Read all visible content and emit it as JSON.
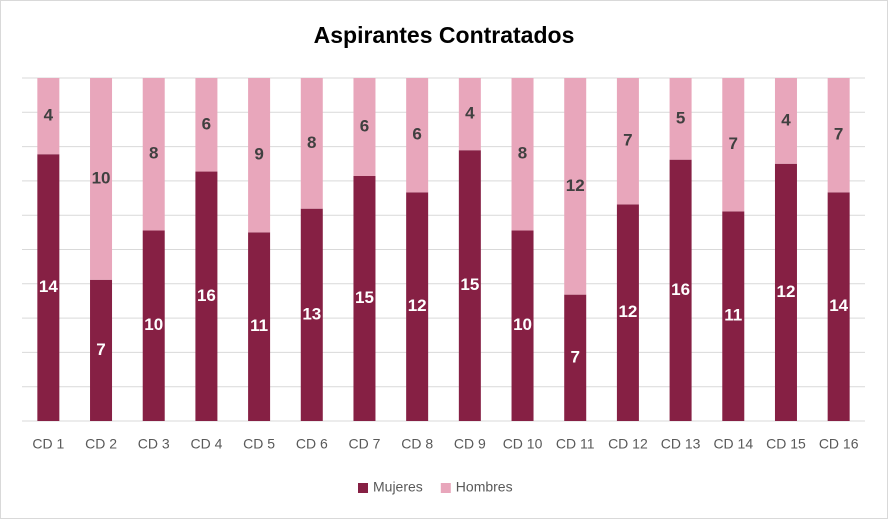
{
  "chart_data": {
    "type": "bar",
    "stacked": "percent",
    "title": "Aspirantes Contratados",
    "categories": [
      "CD 1",
      "CD 2",
      "CD 3",
      "CD 4",
      "CD 5",
      "CD 6",
      "CD 7",
      "CD 8",
      "CD 9",
      "CD 10",
      "CD 11",
      "CD 12",
      "CD 13",
      "CD 14",
      "CD 15",
      "CD 16"
    ],
    "series": [
      {
        "name": "Mujeres",
        "color": "#862044",
        "label_color": "#ffffff",
        "values": [
          14,
          7,
          10,
          16,
          11,
          13,
          15,
          12,
          15,
          10,
          7,
          12,
          16,
          11,
          12,
          14
        ]
      },
      {
        "name": "Hombres",
        "color": "#e8a6bb",
        "label_color": "#404040",
        "values": [
          4,
          10,
          8,
          6,
          9,
          8,
          6,
          6,
          4,
          8,
          12,
          7,
          5,
          7,
          4,
          7
        ]
      }
    ],
    "ylim": [
      0,
      100
    ],
    "yticks": [
      0,
      10,
      20,
      30,
      40,
      50,
      60,
      70,
      80,
      90,
      100
    ],
    "grid": true,
    "legend": "bottom"
  }
}
